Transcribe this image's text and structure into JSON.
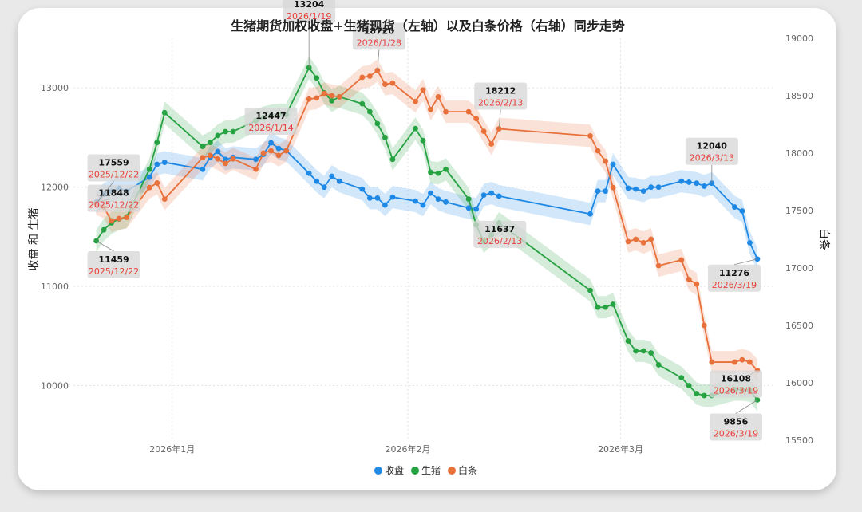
{
  "chart_data": {
    "type": "line",
    "title": "生猪期货加权收盘+生猪现货（左轴）以及白条价格（右轴）同步走势",
    "ylabel_left": "收盘 和 生猪",
    "ylabel_right": "白条",
    "y_left_ticks": [
      "10000",
      "11000",
      "12000",
      "13000"
    ],
    "y_right_ticks": [
      "15500",
      "16000",
      "16500",
      "17000",
      "17500",
      "18000",
      "18500",
      "19000"
    ],
    "x_ticks": [
      {
        "label": "2026年1月",
        "date": "2026-01-01"
      },
      {
        "label": "2026年2月",
        "date": "2026-02-01"
      },
      {
        "label": "2026年3月",
        "date": "2026-03-01"
      }
    ],
    "ylim_left": [
      9450,
      13500
    ],
    "ylim_right": [
      15500,
      19000
    ],
    "xlim": [
      "2025-12-19",
      "2026-03-21"
    ],
    "legend_position": "bottom",
    "grid": true,
    "series": [
      {
        "name": "收盘",
        "axis": "left",
        "color": "#1e88e5",
        "points": [
          [
            "2025-12-22",
            11848
          ],
          [
            "2025-12-23",
            11930
          ],
          [
            "2025-12-24",
            11960
          ],
          [
            "2025-12-25",
            11990
          ],
          [
            "2025-12-26",
            11960
          ],
          [
            "2025-12-29",
            12100
          ],
          [
            "2025-12-30",
            12230
          ],
          [
            "2025-12-31",
            12250
          ],
          [
            "2026-01-05",
            12180
          ],
          [
            "2026-01-06",
            12300
          ],
          [
            "2026-01-07",
            12360
          ],
          [
            "2026-01-08",
            12280
          ],
          [
            "2026-01-09",
            12300
          ],
          [
            "2026-01-12",
            12280
          ],
          [
            "2026-01-13",
            12330
          ],
          [
            "2026-01-14",
            12447
          ],
          [
            "2026-01-15",
            12390
          ],
          [
            "2026-01-16",
            12370
          ],
          [
            "2026-01-19",
            12140
          ],
          [
            "2026-01-20",
            12060
          ],
          [
            "2026-01-21",
            12000
          ],
          [
            "2026-01-22",
            12110
          ],
          [
            "2026-01-23",
            12060
          ],
          [
            "2026-01-26",
            11980
          ],
          [
            "2026-01-27",
            11890
          ],
          [
            "2026-01-28",
            11890
          ],
          [
            "2026-01-29",
            11820
          ],
          [
            "2026-01-30",
            11900
          ],
          [
            "2026-02-02",
            11860
          ],
          [
            "2026-02-03",
            11820
          ],
          [
            "2026-02-04",
            11940
          ],
          [
            "2026-02-05",
            11880
          ],
          [
            "2026-02-06",
            11850
          ],
          [
            "2026-02-09",
            11790
          ],
          [
            "2026-02-10",
            11780
          ],
          [
            "2026-02-11",
            11920
          ],
          [
            "2026-02-12",
            11940
          ],
          [
            "2026-02-13",
            11910
          ],
          [
            "2026-02-25",
            11730
          ],
          [
            "2026-02-26",
            11960
          ],
          [
            "2026-02-27",
            11960
          ],
          [
            "2026-02-28",
            12230
          ],
          [
            "2026-03-02",
            11990
          ],
          [
            "2026-03-03",
            11980
          ],
          [
            "2026-03-04",
            11960
          ],
          [
            "2026-03-05",
            12000
          ],
          [
            "2026-03-06",
            12000
          ],
          [
            "2026-03-09",
            12060
          ],
          [
            "2026-03-10",
            12050
          ],
          [
            "2026-03-11",
            12040
          ],
          [
            "2026-03-12",
            12010
          ],
          [
            "2026-03-13",
            12040
          ],
          [
            "2026-03-16",
            11800
          ],
          [
            "2026-03-17",
            11760
          ],
          [
            "2026-03-18",
            11440
          ],
          [
            "2026-03-19",
            11276
          ]
        ]
      },
      {
        "name": "生猪",
        "axis": "left",
        "color": "#27a243",
        "points": [
          [
            "2025-12-22",
            11459
          ],
          [
            "2025-12-23",
            11570
          ],
          [
            "2025-12-24",
            11640
          ],
          [
            "2025-12-25",
            11680
          ],
          [
            "2025-12-26",
            11700
          ],
          [
            "2025-12-29",
            12180
          ],
          [
            "2025-12-30",
            12450
          ],
          [
            "2025-12-31",
            12750
          ],
          [
            "2026-01-05",
            12410
          ],
          [
            "2026-01-06",
            12450
          ],
          [
            "2026-01-07",
            12520
          ],
          [
            "2026-01-08",
            12560
          ],
          [
            "2026-01-09",
            12560
          ],
          [
            "2026-01-12",
            12670
          ],
          [
            "2026-01-13",
            12700
          ],
          [
            "2026-01-14",
            12720
          ],
          [
            "2026-01-15",
            12730
          ],
          [
            "2026-01-16",
            12730
          ],
          [
            "2026-01-19",
            13204
          ],
          [
            "2026-01-20",
            13100
          ],
          [
            "2026-01-21",
            12950
          ],
          [
            "2026-01-22",
            12870
          ],
          [
            "2026-01-23",
            12910
          ],
          [
            "2026-01-26",
            12840
          ],
          [
            "2026-01-27",
            12760
          ],
          [
            "2026-01-28",
            12640
          ],
          [
            "2026-01-29",
            12500
          ],
          [
            "2026-01-30",
            12280
          ],
          [
            "2026-02-02",
            12590
          ],
          [
            "2026-02-03",
            12470
          ],
          [
            "2026-02-04",
            12150
          ],
          [
            "2026-02-05",
            12140
          ],
          [
            "2026-02-06",
            12180
          ],
          [
            "2026-02-09",
            11880
          ],
          [
            "2026-02-10",
            11620
          ],
          [
            "2026-02-11",
            11450
          ],
          [
            "2026-02-12",
            11520
          ],
          [
            "2026-02-13",
            11637
          ],
          [
            "2026-02-25",
            10960
          ],
          [
            "2026-02-26",
            10790
          ],
          [
            "2026-02-27",
            10790
          ],
          [
            "2026-02-28",
            10820
          ],
          [
            "2026-03-02",
            10450
          ],
          [
            "2026-03-03",
            10350
          ],
          [
            "2026-03-04",
            10350
          ],
          [
            "2026-03-05",
            10330
          ],
          [
            "2026-03-06",
            10210
          ],
          [
            "2026-03-09",
            10080
          ],
          [
            "2026-03-10",
            10000
          ],
          [
            "2026-03-11",
            9920
          ],
          [
            "2026-03-12",
            9900
          ],
          [
            "2026-03-13",
            9900
          ],
          [
            "2026-03-16",
            9960
          ],
          [
            "2026-03-17",
            9960
          ],
          [
            "2026-03-18",
            9950
          ],
          [
            "2026-03-19",
            9856
          ]
        ]
      },
      {
        "name": "白条",
        "axis": "right",
        "color": "#e8703a",
        "points": [
          [
            "2025-12-22",
            17559
          ],
          [
            "2025-12-23",
            17530
          ],
          [
            "2025-12-24",
            17410
          ],
          [
            "2025-12-25",
            17430
          ],
          [
            "2025-12-26",
            17440
          ],
          [
            "2025-12-29",
            17700
          ],
          [
            "2025-12-30",
            17740
          ],
          [
            "2025-12-31",
            17600
          ],
          [
            "2026-01-05",
            17960
          ],
          [
            "2026-01-06",
            17980
          ],
          [
            "2026-01-07",
            17950
          ],
          [
            "2026-01-08",
            17910
          ],
          [
            "2026-01-09",
            17950
          ],
          [
            "2026-01-12",
            17860
          ],
          [
            "2026-01-13",
            18000
          ],
          [
            "2026-01-14",
            18020
          ],
          [
            "2026-01-15",
            17980
          ],
          [
            "2026-01-16",
            18020
          ],
          [
            "2026-01-19",
            18470
          ],
          [
            "2026-01-20",
            18480
          ],
          [
            "2026-01-21",
            18520
          ],
          [
            "2026-01-22",
            18500
          ],
          [
            "2026-01-23",
            18490
          ],
          [
            "2026-01-26",
            18660
          ],
          [
            "2026-01-27",
            18670
          ],
          [
            "2026-01-28",
            18720
          ],
          [
            "2026-01-29",
            18600
          ],
          [
            "2026-01-30",
            18610
          ],
          [
            "2026-02-02",
            18450
          ],
          [
            "2026-02-03",
            18550
          ],
          [
            "2026-02-04",
            18380
          ],
          [
            "2026-02-05",
            18490
          ],
          [
            "2026-02-06",
            18360
          ],
          [
            "2026-02-09",
            18360
          ],
          [
            "2026-02-10",
            18300
          ],
          [
            "2026-02-11",
            18190
          ],
          [
            "2026-02-12",
            18080
          ],
          [
            "2026-02-13",
            18212
          ],
          [
            "2026-02-25",
            18150
          ],
          [
            "2026-02-26",
            18020
          ],
          [
            "2026-02-27",
            17930
          ],
          [
            "2026-02-28",
            17700
          ],
          [
            "2026-03-02",
            17230
          ],
          [
            "2026-03-03",
            17250
          ],
          [
            "2026-03-04",
            17220
          ],
          [
            "2026-03-05",
            17250
          ],
          [
            "2026-03-06",
            17020
          ],
          [
            "2026-03-09",
            17070
          ],
          [
            "2026-03-10",
            16900
          ],
          [
            "2026-03-11",
            16860
          ],
          [
            "2026-03-12",
            16500
          ],
          [
            "2026-03-13",
            16180
          ],
          [
            "2026-03-16",
            16180
          ],
          [
            "2026-03-17",
            16200
          ],
          [
            "2026-03-18",
            16180
          ],
          [
            "2026-03-19",
            16108
          ]
        ]
      }
    ],
    "annotations": [
      {
        "series": "收盘",
        "value": "11848",
        "date": "2025/12/22",
        "anchor": [
          "2025-12-22",
          11848
        ]
      },
      {
        "series": "白条",
        "value": "17559",
        "date": "2025/12/22",
        "anchor": [
          "2025-12-22",
          17559
        ]
      },
      {
        "series": "生猪",
        "value": "11459",
        "date": "2025/12/22",
        "anchor": [
          "2025-12-22",
          11459
        ]
      },
      {
        "series": "收盘",
        "value": "12447",
        "date": "2026/1/14",
        "anchor": [
          "2026-01-14",
          12447
        ]
      },
      {
        "series": "生猪",
        "value": "13204",
        "date": "2026/1/19",
        "anchor": [
          "2026-01-19",
          13204
        ]
      },
      {
        "series": "白条",
        "value": "18720",
        "date": "2026/1/28",
        "anchor": [
          "2026-01-28",
          18720
        ]
      },
      {
        "series": "白条",
        "value": "18212",
        "date": "2026/2/13",
        "anchor": [
          "2026-02-13",
          18212
        ]
      },
      {
        "series": "生猪",
        "value": "11637",
        "date": "2026/2/13",
        "anchor": [
          "2026-02-13",
          11637
        ]
      },
      {
        "series": "收盘",
        "value": "12040",
        "date": "2026/3/13",
        "anchor": [
          "2026-03-13",
          12040
        ]
      },
      {
        "series": "收盘",
        "value": "11276",
        "date": "2026/3/19",
        "anchor": [
          "2026-03-19",
          11276
        ]
      },
      {
        "series": "白条",
        "value": "16108",
        "date": "2026/3/19",
        "anchor": [
          "2026-03-19",
          16108
        ]
      },
      {
        "series": "生猪",
        "value": "9856",
        "date": "2026/3/19",
        "anchor": [
          "2026-03-19",
          9856
        ]
      }
    ]
  }
}
